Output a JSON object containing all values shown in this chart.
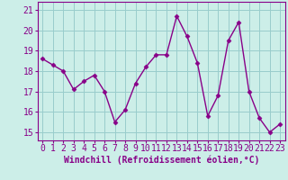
{
  "x": [
    0,
    1,
    2,
    3,
    4,
    5,
    6,
    7,
    8,
    9,
    10,
    11,
    12,
    13,
    14,
    15,
    16,
    17,
    18,
    19,
    20,
    21,
    22,
    23
  ],
  "y": [
    18.6,
    18.3,
    18.0,
    17.1,
    17.5,
    17.8,
    17.0,
    15.5,
    16.1,
    17.4,
    18.2,
    18.8,
    18.8,
    20.7,
    19.7,
    18.4,
    15.8,
    16.8,
    19.5,
    20.4,
    17.0,
    15.7,
    15.0,
    15.4
  ],
  "line_color": "#880088",
  "marker": "D",
  "marker_size": 2.5,
  "bg_color": "#cceee8",
  "grid_color": "#99cccc",
  "xlabel": "Windchill (Refroidissement éolien,°C)",
  "xlabel_fontsize": 7,
  "xtick_labels": [
    "0",
    "1",
    "2",
    "3",
    "4",
    "5",
    "6",
    "7",
    "8",
    "9",
    "10",
    "11",
    "12",
    "13",
    "14",
    "15",
    "16",
    "17",
    "18",
    "19",
    "20",
    "21",
    "22",
    "23"
  ],
  "yticks": [
    15,
    16,
    17,
    18,
    19,
    20,
    21
  ],
  "ylim": [
    14.6,
    21.4
  ],
  "xlim": [
    -0.5,
    23.5
  ],
  "tick_fontsize": 7,
  "spine_color": "#880088"
}
